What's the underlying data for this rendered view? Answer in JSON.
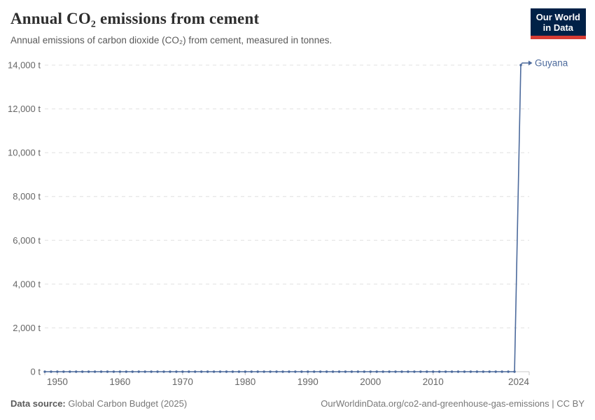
{
  "header": {
    "title": "Annual CO₂ emissions from cement",
    "subtitle": "Annual emissions of carbon dioxide (CO₂) from cement, measured in tonnes.",
    "logo": {
      "line1": "Our World",
      "line2": "in Data",
      "bg_color": "#002147",
      "stripe_color": "#d73c34"
    }
  },
  "chart_data": {
    "type": "line",
    "title": "Annual CO₂ emissions from cement",
    "xlabel": "",
    "ylabel": "",
    "xlim": [
      1948,
      2024
    ],
    "ylim": [
      0,
      14000
    ],
    "x_start_year": 1948,
    "x_ticks": [
      1950,
      1960,
      1970,
      1980,
      1990,
      2000,
      2010,
      2024
    ],
    "x_tick_labels": [
      "1950",
      "1960",
      "1970",
      "1980",
      "1990",
      "2000",
      "2010",
      "2024"
    ],
    "y_ticks": [
      0,
      2000,
      4000,
      6000,
      8000,
      10000,
      12000,
      14000
    ],
    "y_tick_labels": [
      "0 t",
      "2,000 t",
      "4,000 t",
      "6,000 t",
      "8,000 t",
      "10,000 t",
      "12,000 t",
      "14,000 t"
    ],
    "grid": "horizontal-dashed",
    "legend_position": "end-of-line-label-with-arrow",
    "point_markers": true,
    "series": [
      {
        "name": "Guyana",
        "color": "#4c6a9c",
        "values": [
          0,
          0,
          0,
          0,
          0,
          0,
          0,
          0,
          0,
          0,
          0,
          0,
          0,
          0,
          0,
          0,
          0,
          0,
          0,
          0,
          0,
          0,
          0,
          0,
          0,
          0,
          0,
          0,
          0,
          0,
          0,
          0,
          0,
          0,
          0,
          0,
          0,
          0,
          0,
          0,
          0,
          0,
          0,
          0,
          0,
          0,
          0,
          0,
          0,
          0,
          0,
          0,
          0,
          0,
          0,
          0,
          0,
          0,
          0,
          0,
          0,
          0,
          0,
          0,
          0,
          0,
          0,
          0,
          0,
          0,
          0,
          0,
          0,
          0,
          0,
          0,
          14000
        ]
      }
    ]
  },
  "footer": {
    "source_label": "Data source:",
    "source_value": " Global Carbon Budget (2025)",
    "link_text": "OurWorldinData.org/co2-and-greenhouse-gas-emissions | CC BY"
  },
  "colors": {
    "grid": "#e0e0e0",
    "axis": "#c8c8c8",
    "tick_label": "#666666"
  }
}
